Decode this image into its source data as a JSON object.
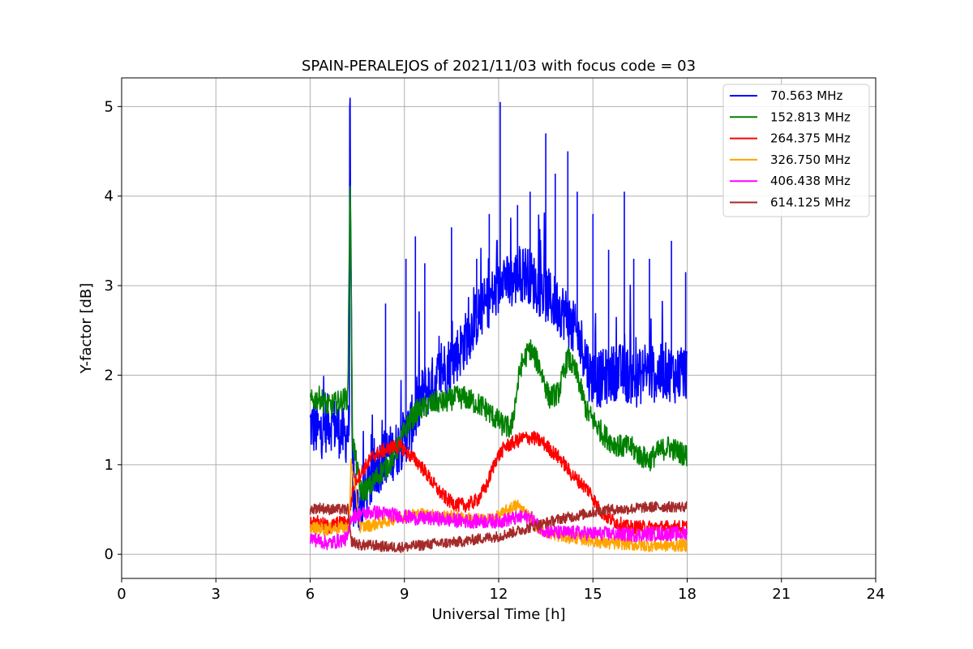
{
  "chart_data": {
    "type": "line",
    "title": "SPAIN-PERALEJOS of 2021/11/03 with focus code = 03",
    "xlabel": "Universal Time [h]",
    "ylabel": "Y-factor [dB]",
    "xlim": [
      0,
      24
    ],
    "ylim": [
      -0.27,
      5.32
    ],
    "xticks": [
      0,
      3,
      6,
      9,
      12,
      15,
      18,
      21,
      24
    ],
    "yticks": [
      0,
      1,
      2,
      3,
      4,
      5
    ],
    "grid": true,
    "legend_position": "top-right",
    "series": [
      {
        "name": " 70.563 MHz",
        "color": "#0000ff",
        "x": [
          6.0,
          6.3,
          6.6,
          6.9,
          7.1,
          7.25,
          7.26,
          7.35,
          7.5,
          7.8,
          8.1,
          8.4,
          8.7,
          9.0,
          9.3,
          9.6,
          9.9,
          10.2,
          10.5,
          10.8,
          11.1,
          11.4,
          11.7,
          12.0,
          12.1,
          12.3,
          12.6,
          12.9,
          13.2,
          13.5,
          13.8,
          14.1,
          14.4,
          14.7,
          14.9,
          15.2,
          15.5,
          15.8,
          16.1,
          16.4,
          16.7,
          17.0,
          17.3,
          17.6,
          18.0
        ],
        "y": [
          1.45,
          1.35,
          1.5,
          1.4,
          1.3,
          1.4,
          5.05,
          0.6,
          0.5,
          0.7,
          0.95,
          1.1,
          1.15,
          1.3,
          1.5,
          1.8,
          1.9,
          2.05,
          2.15,
          2.3,
          2.5,
          2.7,
          2.85,
          2.95,
          3.2,
          3.0,
          3.1,
          3.15,
          3.0,
          2.9,
          2.8,
          2.7,
          2.5,
          2.3,
          2.0,
          1.95,
          2.0,
          2.05,
          2.0,
          1.95,
          2.05,
          2.0,
          2.05,
          2.0,
          2.05
        ],
        "peaks": [
          {
            "x": 7.26,
            "y": 5.05
          },
          {
            "x": 8.4,
            "y": 2.8
          },
          {
            "x": 9.05,
            "y": 3.3
          },
          {
            "x": 9.35,
            "y": 3.55
          },
          {
            "x": 9.65,
            "y": 3.25
          },
          {
            "x": 10.5,
            "y": 3.65
          },
          {
            "x": 11.3,
            "y": 3.3
          },
          {
            "x": 11.7,
            "y": 3.8
          },
          {
            "x": 12.05,
            "y": 5.05
          },
          {
            "x": 12.6,
            "y": 3.9
          },
          {
            "x": 13.0,
            "y": 4.05
          },
          {
            "x": 13.5,
            "y": 4.7
          },
          {
            "x": 13.8,
            "y": 4.25
          },
          {
            "x": 14.2,
            "y": 4.5
          },
          {
            "x": 14.5,
            "y": 4.05
          },
          {
            "x": 15.0,
            "y": 3.8
          },
          {
            "x": 15.5,
            "y": 3.4
          },
          {
            "x": 16.0,
            "y": 4.05
          },
          {
            "x": 16.3,
            "y": 3.3
          },
          {
            "x": 16.8,
            "y": 3.3
          },
          {
            "x": 17.5,
            "y": 3.5
          },
          {
            "x": 17.95,
            "y": 3.15
          }
        ]
      },
      {
        "name": "152.813 MHz",
        "color": "#008000",
        "x": [
          6.0,
          6.3,
          6.6,
          6.9,
          7.2,
          7.27,
          7.35,
          7.6,
          7.9,
          8.2,
          8.5,
          8.8,
          9.1,
          9.4,
          9.7,
          10.0,
          10.3,
          10.6,
          10.9,
          11.2,
          11.5,
          11.8,
          12.1,
          12.4,
          12.7,
          13.0,
          13.3,
          13.6,
          13.9,
          14.2,
          14.5,
          14.8,
          15.0,
          15.3,
          15.6,
          15.9,
          16.2,
          16.5,
          16.8,
          17.1,
          17.4,
          17.7,
          18.0
        ],
        "y": [
          1.7,
          1.75,
          1.65,
          1.7,
          1.75,
          4.25,
          1.3,
          0.7,
          0.75,
          0.9,
          1.0,
          1.2,
          1.45,
          1.6,
          1.65,
          1.7,
          1.7,
          1.75,
          1.75,
          1.7,
          1.65,
          1.55,
          1.45,
          1.4,
          2.1,
          2.3,
          2.1,
          1.75,
          1.8,
          2.2,
          2.0,
          1.6,
          1.5,
          1.35,
          1.25,
          1.2,
          1.2,
          1.1,
          1.05,
          1.15,
          1.2,
          1.15,
          1.1
        ]
      },
      {
        "name": "264.375 MHz",
        "color": "#ff0000",
        "x": [
          6.0,
          6.3,
          6.6,
          6.9,
          7.2,
          7.4,
          7.7,
          8.0,
          8.3,
          8.6,
          8.9,
          9.2,
          9.5,
          9.8,
          10.1,
          10.4,
          10.7,
          11.0,
          11.3,
          11.6,
          11.9,
          12.2,
          12.5,
          12.8,
          13.1,
          13.4,
          13.7,
          14.0,
          14.3,
          14.6,
          14.9,
          15.2,
          15.5,
          15.8,
          16.1,
          16.4,
          16.7,
          17.0,
          17.3,
          17.6,
          18.0
        ],
        "y": [
          0.35,
          0.35,
          0.3,
          0.35,
          0.35,
          0.8,
          0.95,
          1.1,
          1.15,
          1.2,
          1.2,
          1.1,
          1.0,
          0.85,
          0.7,
          0.6,
          0.55,
          0.55,
          0.6,
          0.75,
          1.05,
          1.2,
          1.25,
          1.3,
          1.3,
          1.25,
          1.15,
          1.05,
          0.9,
          0.8,
          0.7,
          0.5,
          0.4,
          0.35,
          0.3,
          0.3,
          0.3,
          0.3,
          0.3,
          0.3,
          0.3
        ]
      },
      {
        "name": "326.750 MHz",
        "color": "#ffa500",
        "x": [
          6.0,
          6.5,
          7.0,
          7.25,
          7.3,
          7.6,
          8.0,
          8.5,
          9.0,
          9.5,
          10.0,
          10.5,
          11.0,
          11.5,
          12.0,
          12.3,
          12.6,
          12.9,
          13.2,
          13.5,
          14.0,
          14.5,
          15.0,
          15.5,
          16.0,
          16.5,
          17.0,
          17.5,
          18.0
        ],
        "y": [
          0.3,
          0.28,
          0.3,
          0.3,
          1.05,
          0.3,
          0.33,
          0.38,
          0.43,
          0.45,
          0.43,
          0.42,
          0.4,
          0.38,
          0.42,
          0.5,
          0.55,
          0.45,
          0.32,
          0.25,
          0.2,
          0.18,
          0.15,
          0.12,
          0.12,
          0.1,
          0.1,
          0.1,
          0.1
        ]
      },
      {
        "name": "406.438 MHz",
        "color": "#ff00ff",
        "x": [
          6.0,
          6.3,
          6.6,
          6.9,
          7.2,
          7.3,
          7.6,
          8.0,
          8.5,
          9.0,
          9.5,
          10.0,
          10.5,
          11.0,
          11.5,
          12.0,
          12.5,
          13.0,
          13.3,
          13.6,
          14.0,
          14.5,
          15.0,
          15.5,
          16.0,
          16.5,
          17.0,
          17.5,
          18.0
        ],
        "y": [
          0.18,
          0.15,
          0.12,
          0.15,
          0.18,
          0.42,
          0.45,
          0.47,
          0.45,
          0.42,
          0.4,
          0.4,
          0.38,
          0.37,
          0.37,
          0.37,
          0.4,
          0.42,
          0.3,
          0.25,
          0.24,
          0.24,
          0.23,
          0.23,
          0.22,
          0.22,
          0.23,
          0.23,
          0.23
        ]
      },
      {
        "name": "614.125 MHz",
        "color": "#a52a2a",
        "x": [
          6.0,
          6.3,
          6.6,
          6.9,
          7.2,
          7.3,
          7.6,
          8.0,
          8.5,
          9.0,
          9.5,
          10.0,
          10.5,
          11.0,
          11.5,
          12.0,
          12.5,
          13.0,
          13.5,
          14.0,
          14.5,
          15.0,
          15.5,
          16.0,
          16.5,
          17.0,
          17.5,
          18.0
        ],
        "y": [
          0.5,
          0.52,
          0.5,
          0.5,
          0.5,
          0.15,
          0.1,
          0.1,
          0.08,
          0.08,
          0.1,
          0.12,
          0.13,
          0.15,
          0.18,
          0.2,
          0.25,
          0.3,
          0.35,
          0.4,
          0.43,
          0.47,
          0.5,
          0.5,
          0.52,
          0.53,
          0.53,
          0.53
        ]
      }
    ]
  }
}
